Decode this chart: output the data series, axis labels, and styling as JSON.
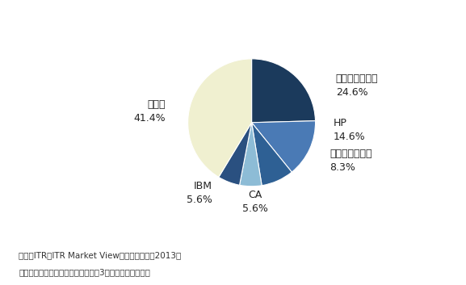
{
  "values": [
    24.6,
    14.6,
    8.3,
    5.6,
    5.6,
    41.4
  ],
  "colors": [
    "#1b3a5c",
    "#4a7ab5",
    "#2e6094",
    "#8dbcd6",
    "#2a5080",
    "#f0f0d0"
  ],
  "startangle": 90,
  "background_color": "#ffffff",
  "label_texts": [
    "マイクロソフト\n24.6%",
    "HP\n14.6%",
    "野村総合研究所\n8.3%",
    "CA\n5.6%",
    "IBM\n5.6%",
    "その他\n41.4%"
  ],
  "footnote1": "出典：ITR「ITR Market View：運用管理市場2013」",
  "footnote2": "＊ベンダーの売上金額を対象とし、3月期ベースで換算。",
  "label_positions": [
    [
      1.32,
      0.58,
      "left",
      "center"
    ],
    [
      1.28,
      -0.12,
      "left",
      "center"
    ],
    [
      1.22,
      -0.6,
      "left",
      "center"
    ],
    [
      0.05,
      -1.25,
      "center",
      "center"
    ],
    [
      -0.62,
      -1.1,
      "right",
      "center"
    ],
    [
      -1.35,
      0.18,
      "right",
      "center"
    ]
  ],
  "fontsize": 9
}
